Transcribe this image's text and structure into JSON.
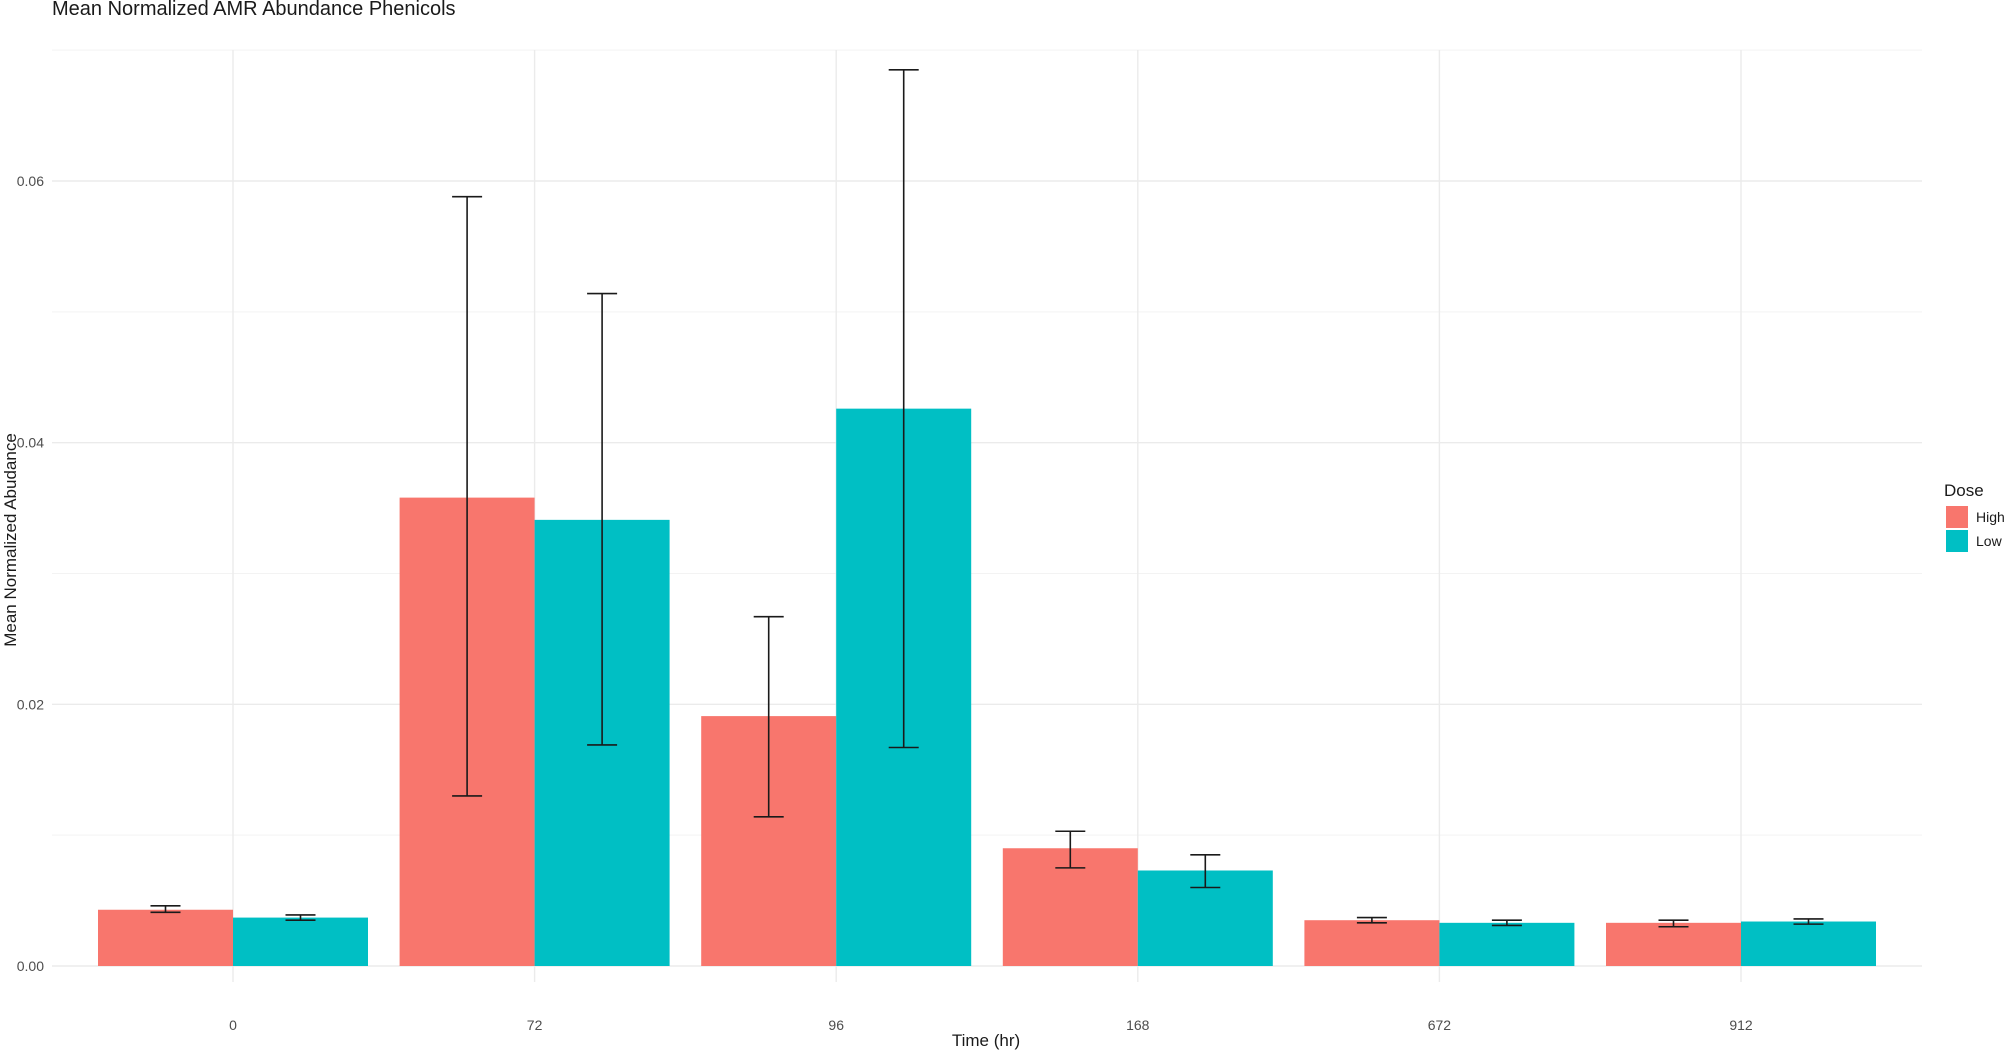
{
  "chart_data": {
    "type": "bar",
    "title": "Mean Normalized AMR Abundance Phenicols",
    "xlabel": "Time (hr)",
    "ylabel": "Mean Normalized Abudance",
    "categories": [
      "0",
      "72",
      "96",
      "168",
      "672",
      "912"
    ],
    "ylim": [
      0,
      0.07
    ],
    "yticks": [
      0.0,
      0.02,
      0.04,
      0.06
    ],
    "ytick_labels": [
      "0.00",
      "0.02",
      "0.04",
      "0.06"
    ],
    "grid": true,
    "legend": {
      "title": "Dose",
      "position": "right"
    },
    "series": [
      {
        "name": "High",
        "color": "#F8766D",
        "values": [
          0.0043,
          0.0358,
          0.0191,
          0.009,
          0.0035,
          0.0033
        ],
        "err_low": [
          0.0041,
          0.013,
          0.0114,
          0.0075,
          0.0033,
          0.003
        ],
        "err_high": [
          0.0046,
          0.0588,
          0.0267,
          0.0103,
          0.0037,
          0.0035
        ]
      },
      {
        "name": "Low",
        "color": "#00BFC4",
        "values": [
          0.0037,
          0.0341,
          0.0426,
          0.0073,
          0.0033,
          0.0034
        ],
        "err_low": [
          0.0035,
          0.0169,
          0.0167,
          0.006,
          0.0031,
          0.0032
        ],
        "err_high": [
          0.0039,
          0.0514,
          0.0685,
          0.0085,
          0.0035,
          0.0036
        ]
      }
    ]
  }
}
